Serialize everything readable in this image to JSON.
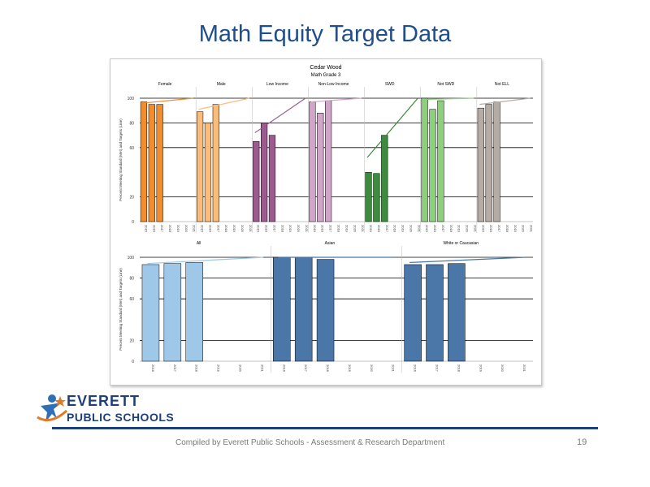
{
  "slide": {
    "title": "Math Equity Target Data",
    "footer": "Compiled  by Everett Public Schools - Assessment & Research Department",
    "page_number": "19"
  },
  "logo": {
    "line1": "EVERETT",
    "line2": "PUBLIC SCHOOLS",
    "colors": {
      "text": "#1f3f7a",
      "figure": "#2e6fb5",
      "swoosh": "#e07a28"
    }
  },
  "chart_data": [
    {
      "type": "bar",
      "title": "Cedar Wood",
      "subtitle": "Math Grade 3",
      "ylabel": "Percent Meeting Standard (Met) and Targets (Line)",
      "ylim": [
        0,
        100
      ],
      "yticks": [
        0,
        20,
        60,
        80,
        100
      ],
      "grid": true,
      "years": [
        "2015",
        "2016",
        "2017",
        "2018",
        "2019",
        "2020",
        "2021"
      ],
      "groups": [
        {
          "name": "Female",
          "color": "#f28c2c",
          "years": [
            "2015",
            "2016",
            "2017",
            "2018",
            "2019",
            "2020",
            "2021"
          ],
          "values": [
            97,
            95,
            95,
            null,
            null,
            null,
            null
          ],
          "target": [
            96,
            100
          ]
        },
        {
          "name": "Male",
          "color": "#f9bc7b",
          "years": [
            "2015",
            "2016",
            "2017",
            "2018",
            "2019",
            "2020",
            "2021"
          ],
          "values": [
            89,
            80,
            95,
            null,
            null,
            null,
            null
          ],
          "target": [
            91,
            100
          ]
        },
        {
          "name": "Low Income",
          "color": "#9c5b8e",
          "years": [
            "2015",
            "2016",
            "2017",
            "2018",
            "2019",
            "2020",
            "2021"
          ],
          "values": [
            65,
            80,
            70,
            null,
            null,
            null,
            null
          ],
          "target": [
            72,
            100
          ]
        },
        {
          "name": "Non-Low Income",
          "color": "#d2a4c9",
          "years": [
            "2015",
            "2016",
            "2017",
            "2018",
            "2019",
            "2020",
            "2021"
          ],
          "values": [
            97,
            88,
            98,
            null,
            null,
            null,
            null
          ],
          "target": [
            97,
            100
          ]
        },
        {
          "name": "SWD",
          "color": "#3e8a3e",
          "years": [
            "2015",
            "2016",
            "2017",
            "2018",
            "2019",
            "2020",
            "2021"
          ],
          "values": [
            40,
            39,
            70,
            null,
            null,
            null,
            null
          ],
          "target": [
            52,
            100
          ]
        },
        {
          "name": "Not SWD",
          "color": "#8dd07c",
          "years": [
            "2015",
            "2016",
            "2017",
            "2018",
            "2019",
            "2020",
            "2021"
          ],
          "values": [
            100,
            91,
            98,
            null,
            null,
            null,
            null
          ],
          "target": [
            99,
            100
          ]
        },
        {
          "name": "Not ELL",
          "color": "#b5aca6",
          "years": [
            "2015",
            "2016",
            "2017",
            "2018",
            "2019",
            "2020",
            "2021"
          ],
          "values": [
            92,
            95,
            97,
            null,
            null,
            null,
            null
          ],
          "target": [
            95,
            100
          ]
        }
      ]
    },
    {
      "type": "bar",
      "title": "",
      "ylabel": "Percent Meeting Standard (Met) and Targets (Line)",
      "ylim": [
        0,
        100
      ],
      "yticks": [
        0,
        20,
        60,
        80,
        100
      ],
      "grid": true,
      "years": [
        "2016",
        "2017",
        "2018",
        "2019",
        "2020",
        "2021"
      ],
      "groups": [
        {
          "name": "All",
          "color": "#9fc8e8",
          "years": [
            "2016",
            "2017",
            "2018",
            "2019",
            "2020",
            "2021"
          ],
          "values": [
            93,
            94,
            95,
            null,
            null,
            null
          ],
          "target": [
            94,
            100
          ]
        },
        {
          "name": "Asian",
          "color": "#4a76a8",
          "years": [
            "2016",
            "2017",
            "2018",
            "2019",
            "2020",
            "2021"
          ],
          "values": [
            100,
            100,
            98,
            null,
            null,
            null
          ],
          "target": [
            100,
            100
          ]
        },
        {
          "name": "White or Caucasian",
          "color": "#4a76a8",
          "years": [
            "2016",
            "2017",
            "2018",
            "2019",
            "2020",
            "2021"
          ],
          "values": [
            93,
            93,
            94,
            null,
            null,
            null
          ],
          "target": [
            95,
            100
          ]
        }
      ]
    }
  ]
}
